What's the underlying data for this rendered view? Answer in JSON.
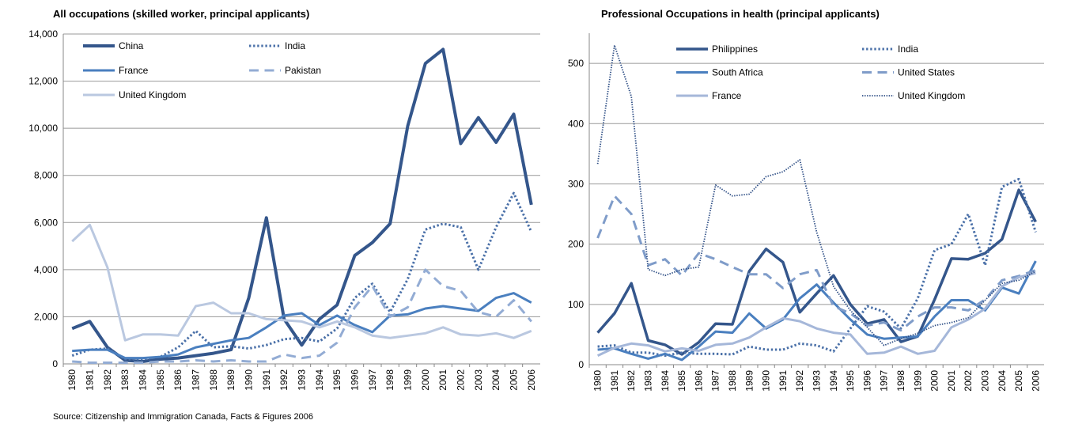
{
  "chart_data": [
    {
      "type": "line",
      "title": "All occupations (skilled worker, principal applicants)",
      "categories": [
        "1980",
        "1981",
        "1982",
        "1983",
        "1984",
        "1985",
        "1986",
        "1987",
        "1988",
        "1989",
        "1990",
        "1991",
        "1992",
        "1993",
        "1994",
        "1995",
        "1996",
        "1997",
        "1998",
        "1999",
        "2000",
        "2001",
        "2002",
        "2003",
        "2004",
        "2005",
        "2006"
      ],
      "ylim": [
        0,
        14000
      ],
      "yticks": [
        0,
        {
          "value": 2000,
          "label": "2,000"
        },
        {
          "value": 4000,
          "label": "4,000"
        },
        {
          "value": 6000,
          "label": "6,000"
        },
        {
          "value": 8000,
          "label": "8,000"
        },
        {
          "value": 10000,
          "label": "10,000"
        },
        {
          "value": 12000,
          "label": "12,000"
        },
        {
          "value": 14000,
          "label": "14,000"
        }
      ],
      "grid": true,
      "legend": "upper left",
      "series": [
        {
          "name": "China",
          "color": "#34568b",
          "style": "solid",
          "width": 4,
          "values": [
            1500,
            1800,
            700,
            150,
            100,
            200,
            250,
            350,
            450,
            600,
            2800,
            6200,
            1900,
            800,
            1900,
            2500,
            4600,
            5150,
            5950,
            10100,
            12750,
            13350,
            9350,
            10450,
            9400,
            10600,
            6750
          ]
        },
        {
          "name": "India",
          "color": "#4a70a8",
          "style": "dotted",
          "width": 3,
          "values": [
            350,
            600,
            650,
            200,
            200,
            300,
            700,
            1400,
            700,
            750,
            650,
            800,
            1050,
            1100,
            950,
            1500,
            2800,
            3400,
            2200,
            3600,
            5700,
            5950,
            5800,
            4000,
            5800,
            7250,
            5600
          ]
        },
        {
          "name": "France",
          "color": "#4a7fbf",
          "style": "solid",
          "width": 3,
          "values": [
            550,
            600,
            600,
            250,
            250,
            300,
            400,
            700,
            850,
            1000,
            1100,
            1550,
            2050,
            2150,
            1650,
            2050,
            1650,
            1350,
            2050,
            2100,
            2350,
            2450,
            2350,
            2250,
            2800,
            3000,
            2600
          ]
        },
        {
          "name": "Pakistan",
          "color": "#93acd4",
          "style": "dashed",
          "width": 3,
          "values": [
            100,
            50,
            50,
            50,
            50,
            100,
            100,
            150,
            100,
            150,
            100,
            100,
            400,
            250,
            350,
            900,
            2400,
            3300,
            2000,
            2400,
            4000,
            3300,
            3100,
            2200,
            2000,
            2700,
            1800
          ]
        },
        {
          "name": "United Kingdom",
          "color": "#bac8e0",
          "style": "solid",
          "width": 3,
          "values": [
            5200,
            5900,
            4100,
            1000,
            1250,
            1250,
            1200,
            2450,
            2600,
            2150,
            2150,
            1900,
            1850,
            1800,
            1550,
            1800,
            1550,
            1200,
            1100,
            1200,
            1300,
            1550,
            1250,
            1200,
            1300,
            1100,
            1400
          ]
        }
      ]
    },
    {
      "type": "line",
      "title": "Professional Occupations in health (principal applicants)",
      "categories": [
        "1980",
        "1981",
        "1982",
        "1983",
        "1984",
        "1985",
        "1986",
        "1987",
        "1988",
        "1989",
        "1990",
        "1991",
        "1992",
        "1993",
        "1994",
        "1995",
        "1996",
        "1997",
        "1998",
        "1999",
        "2000",
        "2001",
        "2002",
        "2003",
        "2004",
        "2005",
        "2006"
      ],
      "ylim": [
        0,
        550
      ],
      "yticks": [
        0,
        100,
        200,
        300,
        400,
        500
      ],
      "grid": true,
      "legend": "upper left",
      "series": [
        {
          "name": "Philippines",
          "color": "#34568b",
          "style": "solid",
          "width": 3.5,
          "values": [
            53,
            85,
            135,
            40,
            33,
            17,
            37,
            68,
            67,
            155,
            192,
            170,
            87,
            118,
            148,
            100,
            68,
            75,
            38,
            47,
            108,
            176,
            175,
            185,
            208,
            290,
            237
          ]
        },
        {
          "name": "India",
          "color": "#4a70a8",
          "style": "dotted",
          "width": 3,
          "values": [
            30,
            32,
            20,
            20,
            15,
            20,
            18,
            18,
            17,
            30,
            25,
            25,
            35,
            32,
            22,
            60,
            97,
            88,
            60,
            110,
            190,
            200,
            250,
            165,
            295,
            308,
            220
          ]
        },
        {
          "name": "South Africa",
          "color": "#4a7fbf",
          "style": "solid",
          "width": 3,
          "values": [
            25,
            27,
            18,
            10,
            18,
            8,
            30,
            55,
            53,
            85,
            60,
            75,
            110,
            133,
            103,
            75,
            50,
            43,
            45,
            47,
            80,
            107,
            107,
            90,
            128,
            118,
            172
          ]
        },
        {
          "name": "United States",
          "color": "#7f9cc9",
          "style": "dashed",
          "width": 3,
          "values": [
            210,
            280,
            250,
            165,
            175,
            148,
            185,
            175,
            162,
            150,
            150,
            127,
            150,
            157,
            97,
            85,
            65,
            70,
            57,
            80,
            95,
            95,
            90,
            108,
            140,
            147,
            157
          ]
        },
        {
          "name": "France",
          "color": "#a5b7d9",
          "style": "solid",
          "width": 3,
          "values": [
            15,
            28,
            35,
            32,
            22,
            27,
            23,
            33,
            35,
            45,
            62,
            77,
            72,
            60,
            53,
            50,
            18,
            20,
            30,
            18,
            23,
            62,
            75,
            93,
            130,
            145,
            152
          ]
        },
        {
          "name": "United Kingdom",
          "color": "#2f4f86",
          "style": "dotted",
          "width": 1.8,
          "values": [
            333,
            530,
            445,
            158,
            148,
            158,
            162,
            298,
            280,
            283,
            312,
            320,
            340,
            220,
            130,
            90,
            62,
            32,
            43,
            52,
            65,
            70,
            78,
            107,
            135,
            140,
            155
          ]
        }
      ]
    }
  ],
  "source": "Source: Citizenship and Immigration Canada, Facts & Figures 2006"
}
